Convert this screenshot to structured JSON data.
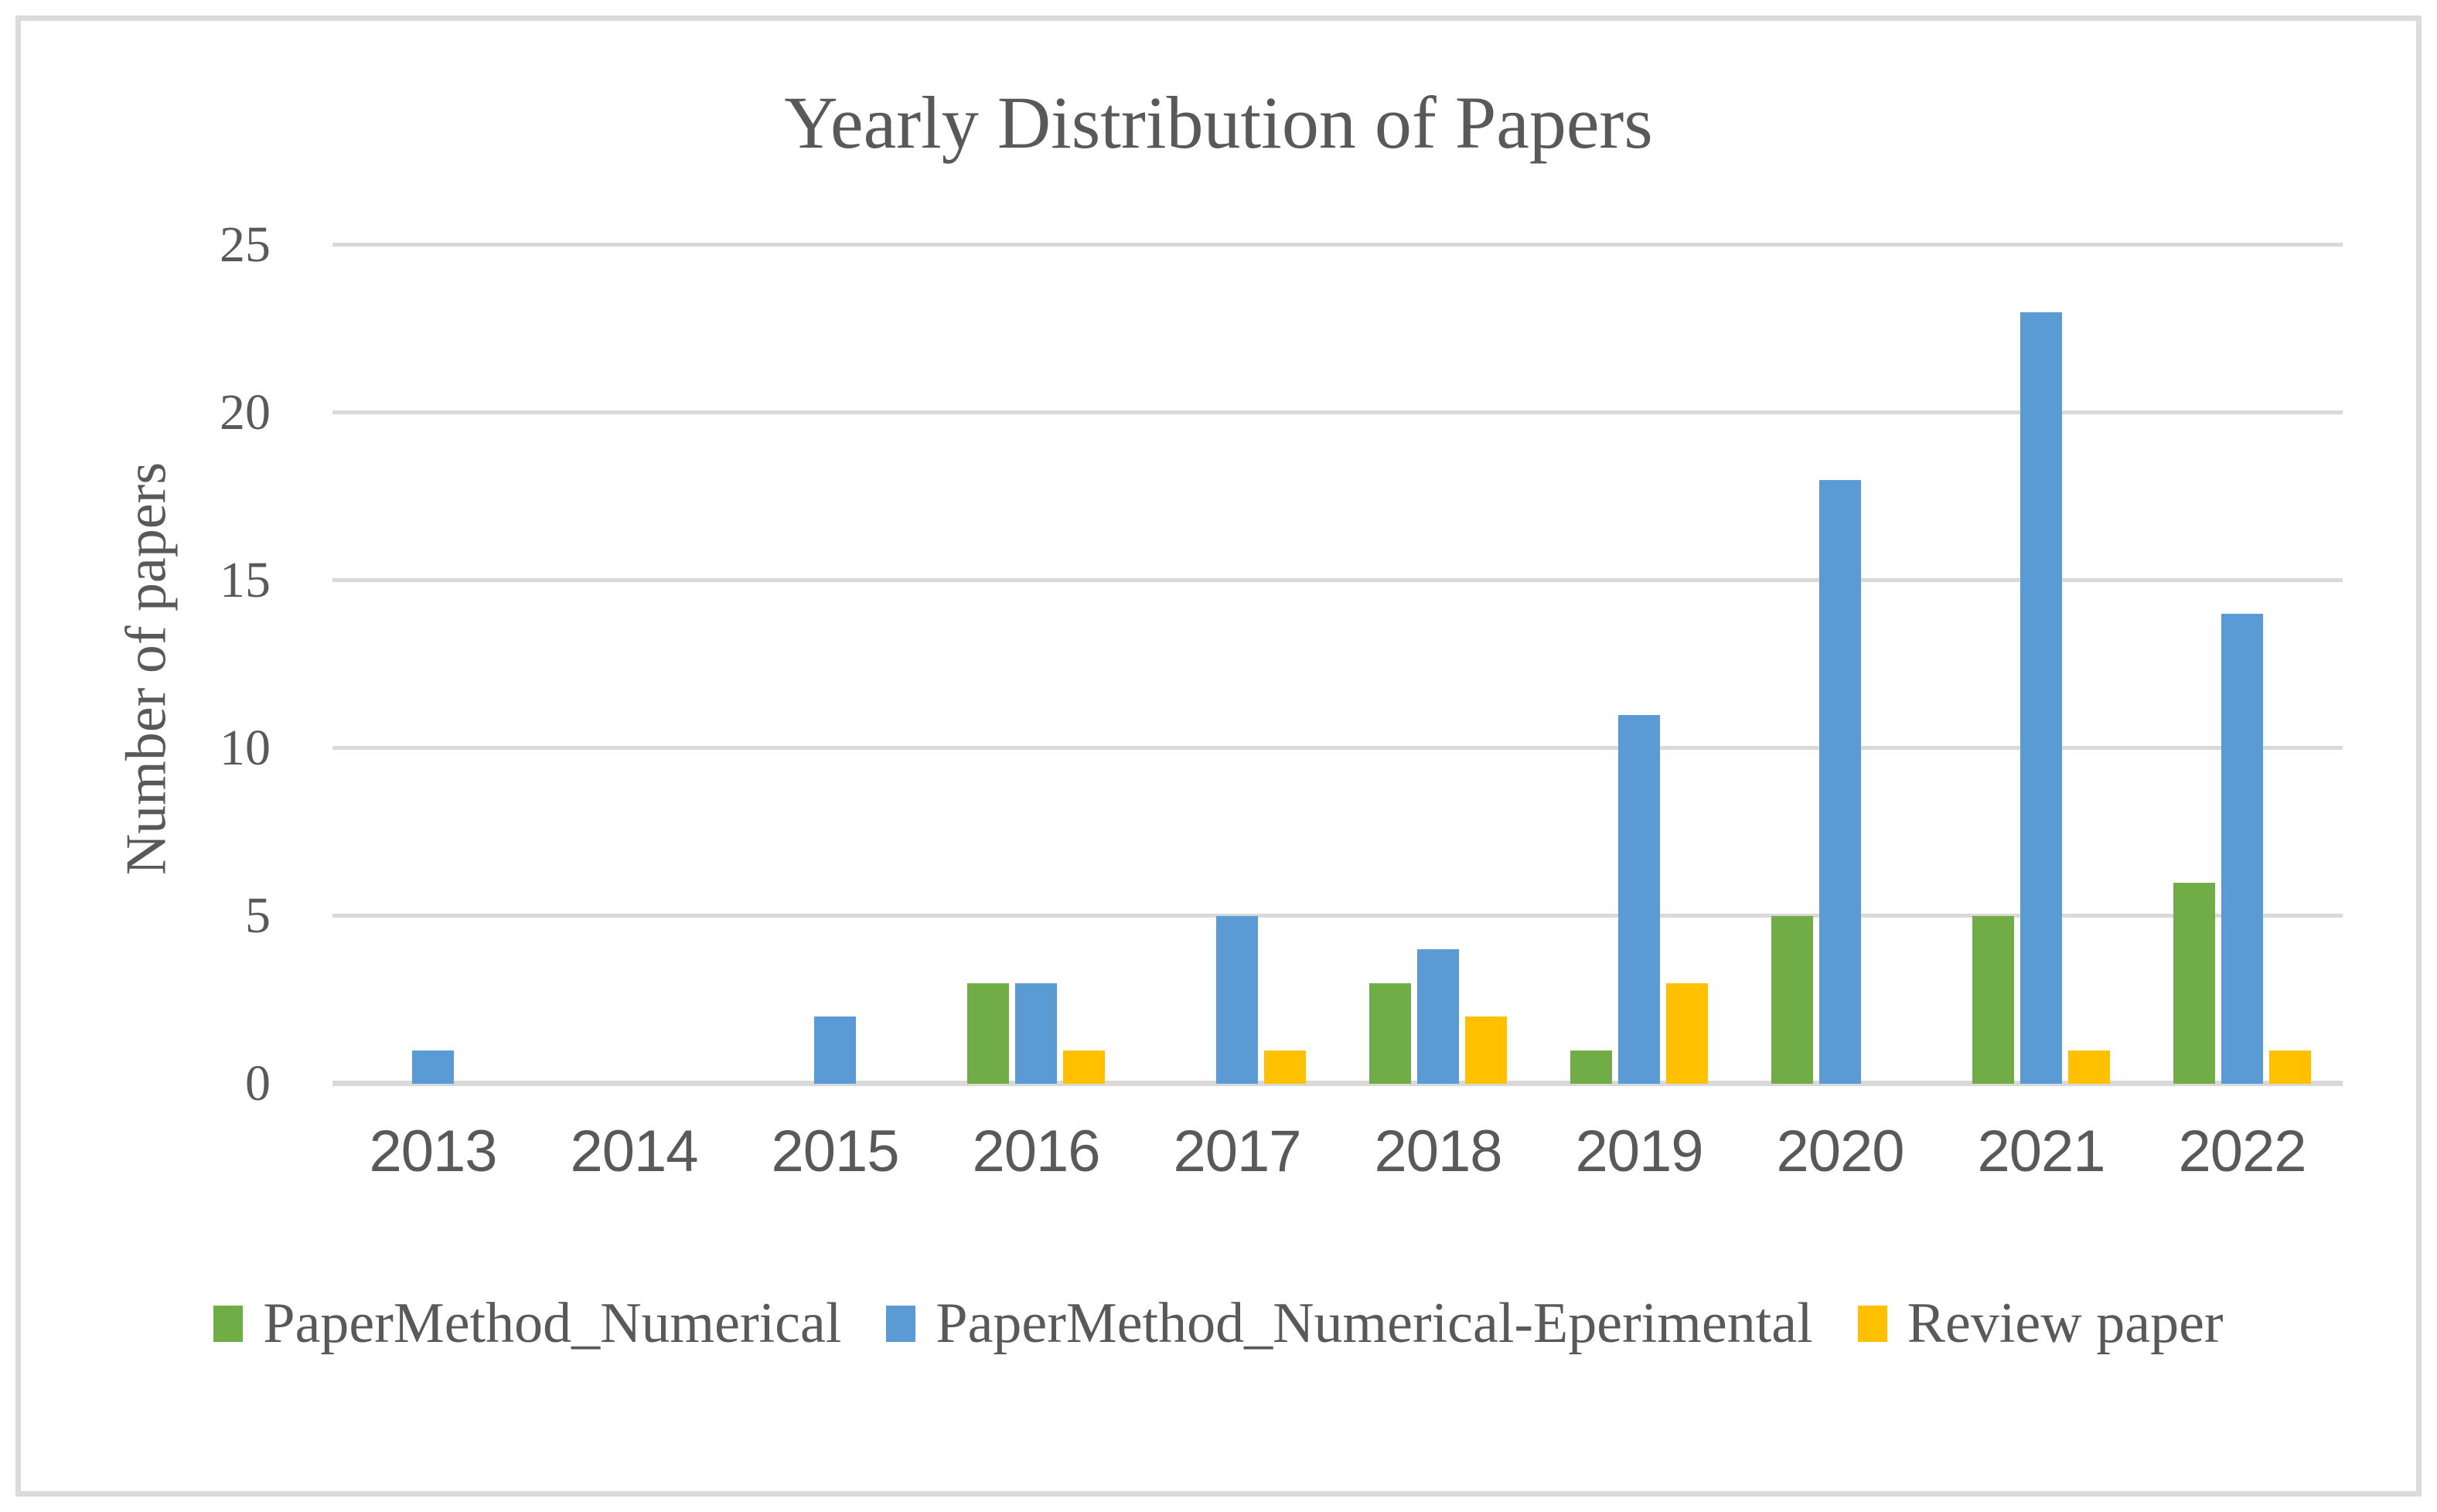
{
  "title": "Yearly Distribution of Papers",
  "y_axis": {
    "title": "Number of papers",
    "ticks": [
      0,
      5,
      10,
      15,
      20,
      25
    ],
    "max": 25
  },
  "x_axis": {
    "categories": [
      "2013",
      "2014",
      "2015",
      "2016",
      "2017",
      "2018",
      "2019",
      "2020",
      "2021",
      "2022"
    ]
  },
  "legend": {
    "items": [
      {
        "label": "PaperMethod_Numerical",
        "color": "#70AD47"
      },
      {
        "label": "PaperMethod_Numerical-Eperimental",
        "color": "#5B9BD5"
      },
      {
        "label": "Review paper",
        "color": "#FFC000"
      }
    ]
  },
  "chart_data": {
    "type": "bar",
    "title": "Yearly Distribution of Papers",
    "categories": [
      "2013",
      "2014",
      "2015",
      "2016",
      "2017",
      "2018",
      "2019",
      "2020",
      "2021",
      "2022"
    ],
    "series": [
      {
        "name": "PaperMethod_Numerical",
        "color": "#70AD47",
        "values": [
          0,
          0,
          0,
          3,
          0,
          3,
          1,
          5,
          5,
          6
        ]
      },
      {
        "name": "PaperMethod_Numerical-Eperimental",
        "color": "#5B9BD5",
        "values": [
          1,
          0,
          2,
          3,
          5,
          4,
          11,
          18,
          23,
          14
        ]
      },
      {
        "name": "Review paper",
        "color": "#FFC000",
        "values": [
          0,
          0,
          0,
          1,
          1,
          2,
          3,
          0,
          1,
          1
        ]
      }
    ],
    "xlabel": "",
    "ylabel": "Number of papers",
    "ylim": [
      0,
      25
    ],
    "grid": true,
    "legend_position": "bottom"
  },
  "colors": {
    "grid": "#D9D9D9",
    "axis_text": "#595959",
    "frame_border": "#DBDBDB",
    "background": "#FFFFFF"
  }
}
